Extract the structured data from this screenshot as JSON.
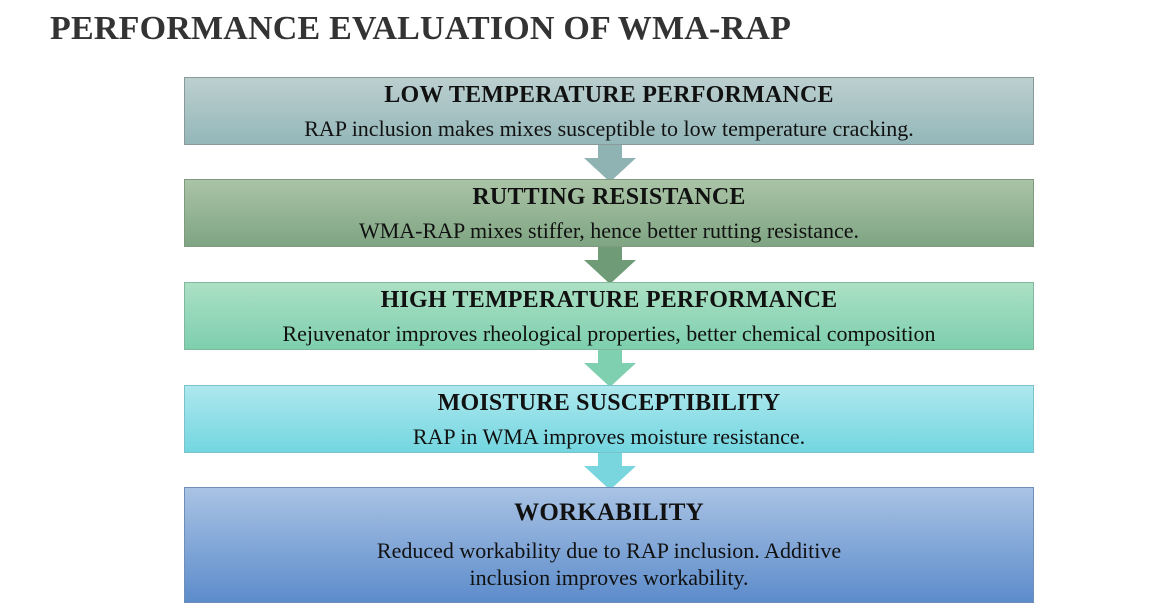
{
  "title": "PERFORMANCE EVALUATION OF WMA-RAP",
  "stages": [
    {
      "heading": "LOW TEMPERATURE PERFORMANCE",
      "text": "RAP inclusion makes mixes susceptible to low temperature cracking.",
      "color": "#94b7b9"
    },
    {
      "heading": "RUTTING RESISTANCE",
      "text": "WMA-RAP mixes stiffer, hence better rutting resistance.",
      "color": "#7fa583"
    },
    {
      "heading": "HIGH TEMPERATURE PERFORMANCE",
      "text": "Rejuvenator improves rheological properties, better chemical composition",
      "color": "#7dcfae"
    },
    {
      "heading": "MOISTURE SUSCEPTIBILITY",
      "text": "RAP in WMA improves moisture resistance.",
      "color": "#73d6e0"
    },
    {
      "heading": "WORKABILITY",
      "text": "Reduced workability due to RAP inclusion. Additive inclusion improves workability.",
      "color": "#5d8ccb"
    }
  ],
  "arrow_colors": [
    "#8fb3b3",
    "#6f9c77",
    "#7fd0b0",
    "#7ad6de"
  ]
}
